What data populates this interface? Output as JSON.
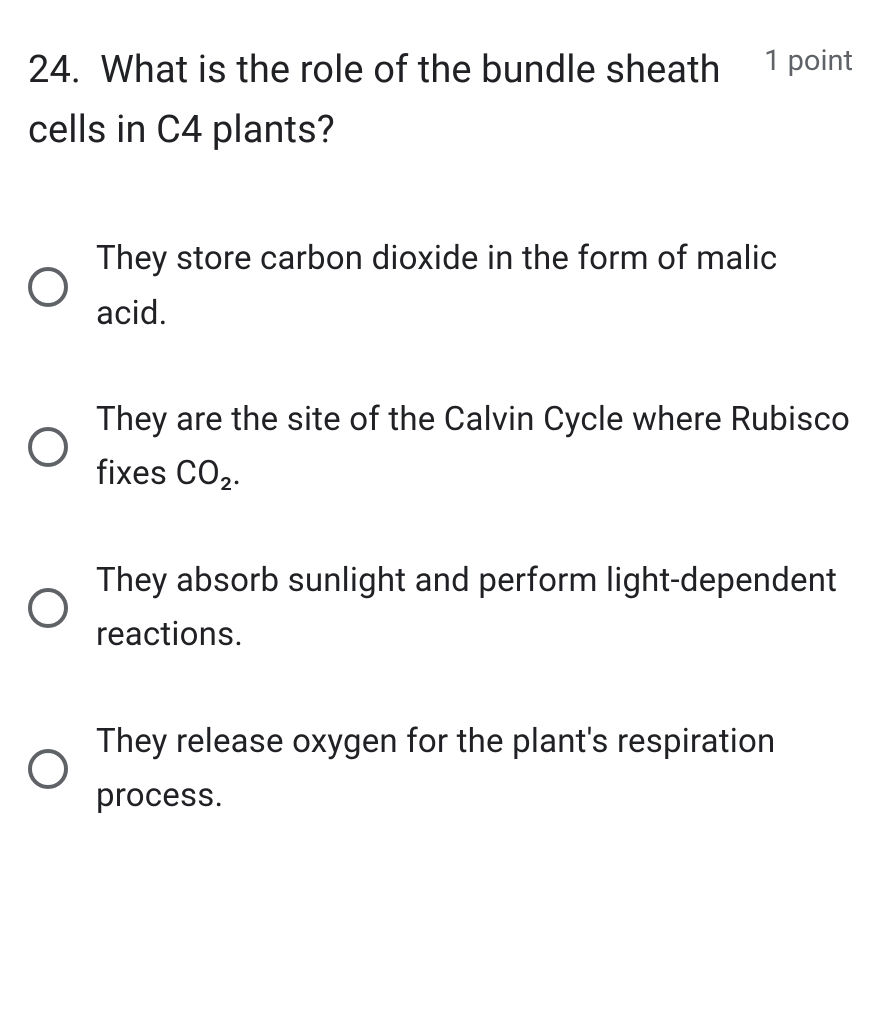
{
  "question": {
    "number": "24.",
    "text": "What is the role of the bundle sheath cells in C4 plants?",
    "points_label": "1 point"
  },
  "options": [
    {
      "text": "They store carbon dioxide in the form of malic acid."
    },
    {
      "text": "They are the site of the Calvin Cycle where Rubisco fixes CO₂."
    },
    {
      "text": "They absorb sunlight and perform light-dependent reactions."
    },
    {
      "text": "They release oxygen for the plant's respiration process."
    }
  ],
  "styling": {
    "question_fontsize": 38,
    "question_color": "#202124",
    "points_fontsize": 29,
    "points_color": "#5f6368",
    "option_fontsize": 33,
    "option_color": "#202124",
    "radio_border_color": "#5f6368",
    "radio_size": 40,
    "radio_border_width": 4,
    "background_color": "#ffffff",
    "option_gap": 52,
    "header_margin_bottom": 72
  }
}
